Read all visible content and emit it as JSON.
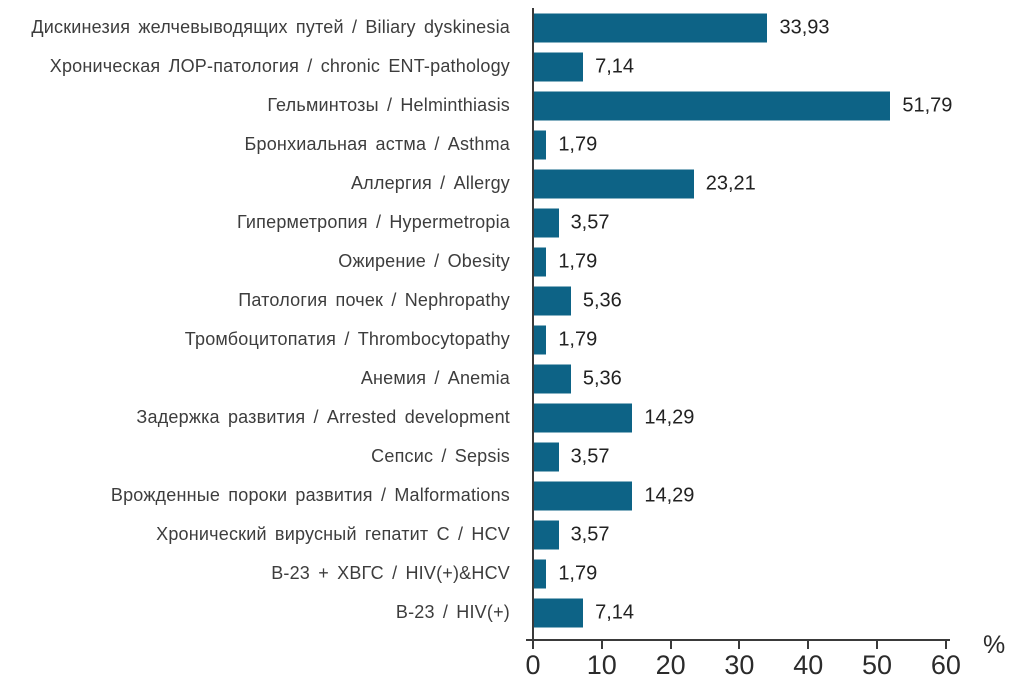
{
  "chart_data": {
    "type": "bar",
    "orientation": "horizontal",
    "title": "",
    "xlabel": "%",
    "ylabel": "",
    "grid": false,
    "legend": false,
    "xlim": [
      0,
      60
    ],
    "x_ticks": [
      0,
      10,
      20,
      30,
      40,
      50,
      60
    ],
    "categories": [
      "Дискинезия желчевыводящих путей / Biliary dyskinesia",
      "Хроническая ЛОР-патология / chronic ENT-pathology",
      "Гельминтозы / Helminthiasis",
      "Бронхиальная астма / Asthma",
      "Аллергия / Allergy",
      "Гиперметропия / Hypermetropia",
      "Ожирение / Obesity",
      "Патология почек / Nephropathy",
      "Тромбоцитопатия / Thrombocytopathy",
      "Анемия / Anemia",
      "Задержка развития / Arrested development",
      "Сепсис / Sepsis",
      "Врожденные пороки развития / Malformations",
      "Хронический вирусный гепатит С / HCV",
      "В-23 + ХВГС / HIV(+)&HCV",
      "В-23 / HIV(+)"
    ],
    "values": [
      33.93,
      7.14,
      51.79,
      1.79,
      23.21,
      3.57,
      1.79,
      5.36,
      1.79,
      5.36,
      14.29,
      3.57,
      14.29,
      3.57,
      1.79,
      7.14
    ],
    "value_labels": [
      "33,93",
      "7,14",
      "51,79",
      "1,79",
      "23,21",
      "3,57",
      "1,79",
      "5,36",
      "1,79",
      "5,36",
      "14,29",
      "3,57",
      "14,29",
      "3,57",
      "1,79",
      "7,14"
    ],
    "colors": {
      "bar": "#0d6386",
      "axis": "#3a3a3a",
      "category_text": "#3d3d3d",
      "value_text": "#222222"
    }
  }
}
